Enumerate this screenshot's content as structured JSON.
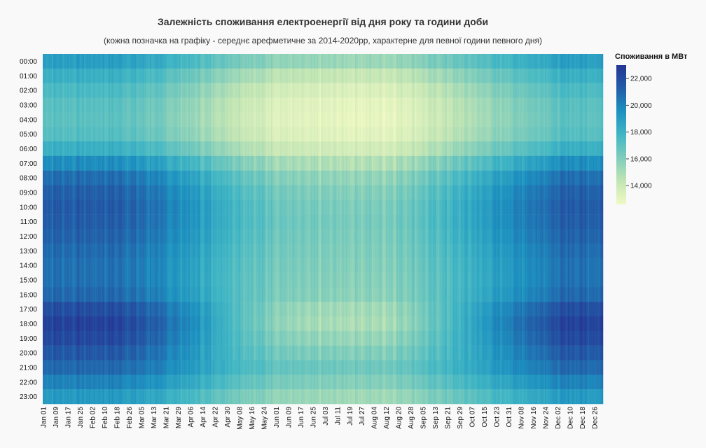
{
  "chart_data": {
    "type": "heatmap",
    "title": "Залежність споживання електроенергії від дня року та години доби",
    "subtitle": "(кожна позначка на графіку - середнє арефметичне за 2014-2020рр, характерне для певної години певного дня)",
    "xlabel": "",
    "ylabel": "",
    "y_categories": [
      "00:00",
      "01:00",
      "02:00",
      "03:00",
      "04:00",
      "05:00",
      "06:00",
      "07:00",
      "08:00",
      "09:00",
      "10:00",
      "11:00",
      "12:00",
      "13:00",
      "14:00",
      "15:00",
      "16:00",
      "17:00",
      "18:00",
      "19:00",
      "20:00",
      "21:00",
      "22:00",
      "23:00"
    ],
    "x_tick_labels": [
      "Jan 01",
      "Jan 09",
      "Jan 17",
      "Jan 25",
      "Feb 02",
      "Feb 10",
      "Feb 18",
      "Feb 26",
      "Mar 05",
      "Mar 13",
      "Mar 21",
      "Mar 29",
      "Apr 06",
      "Apr 14",
      "Apr 22",
      "Apr 30",
      "May 08",
      "May 16",
      "May 24",
      "Jun 01",
      "Jun 09",
      "Jun 17",
      "Jun 25",
      "Jul 03",
      "Jul 11",
      "Jul 19",
      "Jul 27",
      "Aug 04",
      "Aug 12",
      "Aug 20",
      "Aug 28",
      "Sep 05",
      "Sep 13",
      "Sep 21",
      "Sep 29",
      "Oct 07",
      "Oct 15",
      "Oct 23",
      "Oct 31",
      "Nov 08",
      "Nov 16",
      "Nov 24",
      "Dec 02",
      "Dec 10",
      "Dec 18",
      "Dec 26"
    ],
    "x_days": 366,
    "hourly_winter_mw": [
      19000,
      18200,
      17600,
      17200,
      17100,
      17300,
      18200,
      19800,
      20900,
      21400,
      21600,
      21500,
      21300,
      21000,
      20800,
      20800,
      21100,
      22100,
      22600,
      22300,
      21700,
      21000,
      20100,
      19200
    ],
    "hourly_summer_mw": [
      15400,
      14200,
      13500,
      13100,
      13000,
      13200,
      13800,
      14900,
      15700,
      16100,
      16300,
      16400,
      16300,
      16200,
      16100,
      16000,
      15900,
      15800,
      15600,
      15600,
      15900,
      16300,
      16000,
      15300
    ],
    "colorbar": {
      "title": "Споживання в МВт",
      "min": 12600,
      "max": 23000,
      "ticks": [
        "14,000",
        "16,000",
        "18,000",
        "20,000",
        "22,000"
      ],
      "tick_values": [
        14000,
        16000,
        18000,
        20000,
        22000
      ],
      "colorscale": [
        "#f0f9c4",
        "#c2e5b4",
        "#7fcdbb",
        "#41b6c4",
        "#1d91c0",
        "#225ea8",
        "#253494"
      ]
    }
  }
}
